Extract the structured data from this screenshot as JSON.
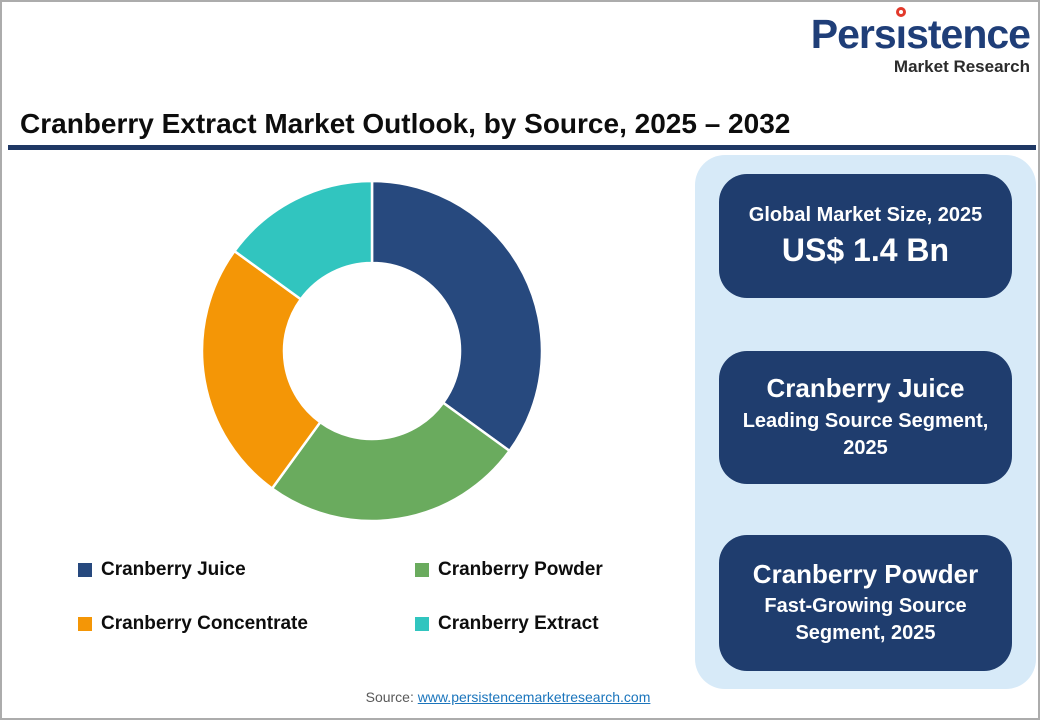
{
  "page": {
    "title": "Cranberry Extract Market Outlook, by Source, 2025 – 2032",
    "background": "#FFFFFF",
    "border_color": "#ACACAC",
    "title_rule_color": "#1F3864"
  },
  "logo": {
    "brand": "Persistence",
    "subtitle": "Market Research",
    "brand_color": "#1F3E78",
    "subtitle_color": "#2B2B2B",
    "dot_color": "#E2392B"
  },
  "chart_data": {
    "type": "pie",
    "subtype": "donut",
    "title": "Cranberry Extract Market Outlook, by Source, 2025 – 2032",
    "labels": [
      "Cranberry Juice",
      "Cranberry Powder",
      "Cranberry Concentrate",
      "Cranberry Extract"
    ],
    "values": [
      35,
      25,
      25,
      15
    ],
    "values_unit": "percent share (estimated from arc angles; no data labels shown)",
    "colors": [
      "#27497E",
      "#6AAB5E",
      "#F49606",
      "#31C5BF"
    ],
    "start_angle_deg": 0,
    "direction": "clockwise",
    "inner_radius_ratio": 0.52,
    "segment_separator_color": "#FFFFFF",
    "legend_position": "bottom",
    "legend_columns": 2
  },
  "panel": {
    "background": "#D7EAF8",
    "card_background": "#1F3D6E",
    "cards": [
      {
        "title": "Global Market Size, 2025",
        "value": "US$ 1.4 Bn"
      },
      {
        "title": "Cranberry Juice",
        "subtitle": "Leading Source Segment, 2025"
      },
      {
        "title": "Cranberry Powder",
        "subtitle": "Fast-Growing Source Segment, 2025"
      }
    ]
  },
  "source": {
    "prefix": "Source: ",
    "link_text": "www.persistencemarketresearch.com",
    "link_color": "#1B75BC"
  }
}
